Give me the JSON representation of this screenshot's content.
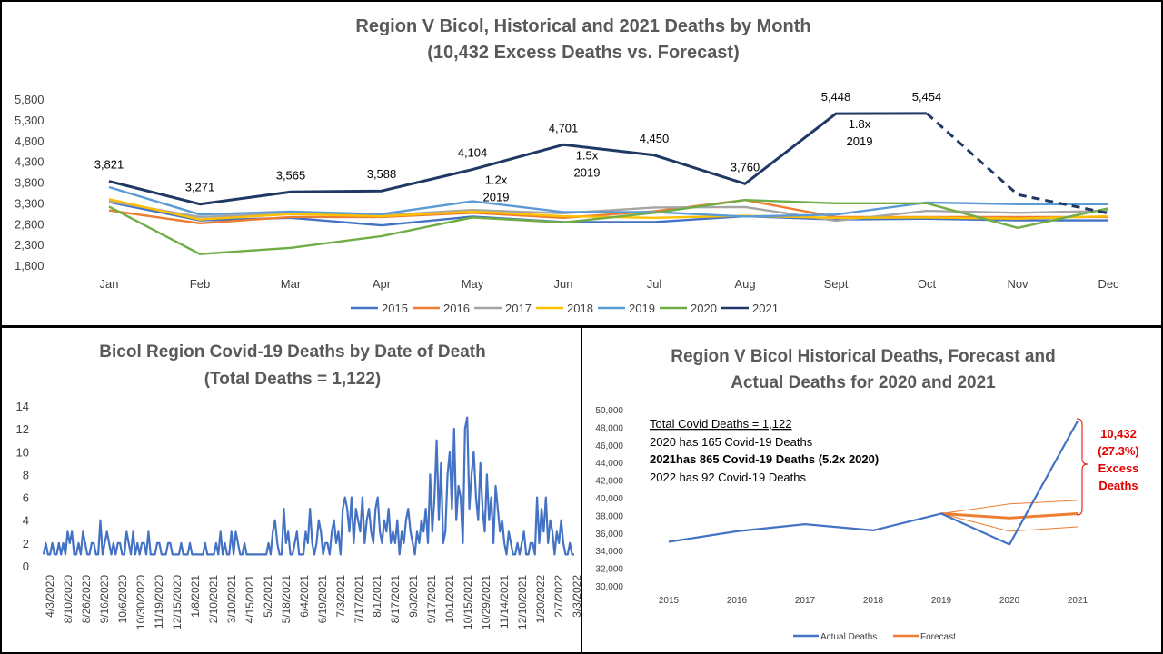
{
  "chart_data": [
    {
      "type": "line",
      "title": "Region V Bicol, Historical and 2021 Deaths by Month",
      "subtitle": "(10,432 Excess Deaths vs. Forecast)",
      "categories": [
        "Jan",
        "Feb",
        "Mar",
        "Apr",
        "May",
        "Jun",
        "Jul",
        "Aug",
        "Sept",
        "Oct",
        "Nov",
        "Dec"
      ],
      "y_ticks": [
        "1,800",
        "2,300",
        "2,800",
        "3,300",
        "3,800",
        "4,300",
        "4,800",
        "5,300",
        "5,800"
      ],
      "ylim": [
        1800,
        5800
      ],
      "grid": false,
      "legend_position": "bottom",
      "series": [
        {
          "name": "2015",
          "color": "#4472C4",
          "values": [
            3320,
            2880,
            2940,
            2760,
            2970,
            2840,
            2840,
            2980,
            2900,
            2920,
            2880,
            2880
          ]
        },
        {
          "name": "2016",
          "color": "#ED7D31",
          "values": [
            3120,
            2810,
            2960,
            2960,
            3060,
            2940,
            3100,
            3370,
            2960,
            2960,
            2960,
            2960
          ]
        },
        {
          "name": "2017",
          "color": "#A5A5A5",
          "values": [
            3340,
            2960,
            3050,
            3000,
            3130,
            3050,
            3190,
            3200,
            2870,
            3110,
            3060,
            3110
          ]
        },
        {
          "name": "2018",
          "color": "#FFC000",
          "values": [
            3390,
            2900,
            3030,
            2980,
            3090,
            2980,
            2940,
            2990,
            2940,
            2950,
            2920,
            2980
          ]
        },
        {
          "name": "2019",
          "color": "#5B9BD5",
          "values": [
            3680,
            3020,
            3090,
            3030,
            3340,
            3080,
            3080,
            2970,
            3020,
            3310,
            3270,
            3270
          ]
        },
        {
          "name": "2020",
          "color": "#70AD47",
          "values": [
            3210,
            2070,
            2220,
            2500,
            2950,
            2830,
            3060,
            3370,
            3290,
            3290,
            2700,
            3170
          ]
        },
        {
          "name": "2021",
          "color": "#203864",
          "values": [
            3821,
            3271,
            3565,
            3588,
            4104,
            4701,
            4450,
            3760,
            5448,
            5454,
            3500,
            3050
          ]
        }
      ],
      "data_labels": [
        "3,821",
        "3,271",
        "3,565",
        "3,588",
        "4,104",
        "4,701",
        "4,450",
        "3,760",
        "5,448",
        "5,454"
      ],
      "ratio_labels": [
        {
          "month": "May",
          "lines": [
            "1.2x",
            "2019"
          ]
        },
        {
          "month": "Jun",
          "lines": [
            "1.5x",
            "2019"
          ]
        },
        {
          "month": "Sept",
          "lines": [
            "1.8x",
            "2019"
          ]
        }
      ]
    },
    {
      "type": "line",
      "title": "Bicol Region Covid-19 Deaths by Date of Death",
      "subtitle": "(Total Deaths = 1,122)",
      "y_ticks": [
        "0",
        "2",
        "4",
        "6",
        "8",
        "10",
        "12",
        "14"
      ],
      "ylim": [
        0,
        14
      ],
      "grid": false,
      "color": "#4472C4",
      "x_tick_labels": [
        "4/3/2020",
        "8/10/2020",
        "8/26/2020",
        "9/16/2020",
        "10/6/2020",
        "10/30/2020",
        "11/19/2020",
        "12/15/2020",
        "1/8/2021",
        "2/10/2021",
        "3/10/2021",
        "4/15/2021",
        "5/2/2021",
        "5/18/2021",
        "6/4/2021",
        "6/19/2021",
        "7/3/2021",
        "7/17/2021",
        "8/1/2021",
        "8/17/2021",
        "9/3/2021",
        "9/17/2021",
        "10/1/2021",
        "10/15/2021",
        "10/29/2021",
        "11/14/2021",
        "12/10/2021",
        "1/20/2022",
        "2/7/2022",
        "3/3/2022"
      ],
      "values": [
        1,
        2,
        1,
        1,
        2,
        1,
        1,
        2,
        1,
        2,
        1,
        3,
        2,
        3,
        1,
        1,
        2,
        1,
        3,
        2,
        1,
        1,
        2,
        2,
        1,
        1,
        4,
        1,
        2,
        3,
        2,
        1,
        2,
        1,
        2,
        2,
        1,
        1,
        3,
        2,
        1,
        3,
        1,
        2,
        1,
        2,
        2,
        1,
        3,
        1,
        1,
        1,
        2,
        2,
        1,
        1,
        1,
        2,
        2,
        1,
        1,
        1,
        1,
        2,
        1,
        1,
        1,
        2,
        1,
        1,
        1,
        1,
        1,
        1,
        2,
        1,
        1,
        1,
        1,
        2,
        1,
        3,
        1,
        2,
        1,
        1,
        3,
        1,
        3,
        2,
        1,
        1,
        2,
        1,
        1,
        1,
        1,
        1,
        1,
        1,
        1,
        1,
        1,
        2,
        1,
        3,
        4,
        2,
        1,
        1,
        5,
        2,
        3,
        1,
        1,
        2,
        3,
        1,
        1,
        1,
        3,
        2,
        5,
        2,
        1,
        2,
        4,
        3,
        1,
        2,
        2,
        1,
        3,
        4,
        2,
        3,
        1,
        5,
        6,
        5,
        3,
        6,
        2,
        5,
        4,
        3,
        6,
        2,
        4,
        5,
        3,
        2,
        5,
        6,
        3,
        2,
        4,
        3,
        5,
        2,
        3,
        2,
        4,
        1,
        3,
        2,
        4,
        5,
        3,
        2,
        1,
        3,
        2,
        4,
        3,
        5,
        2,
        8,
        3,
        6,
        11,
        4,
        9,
        2,
        3,
        8,
        10,
        5,
        12,
        4,
        7,
        6,
        2,
        12,
        13,
        5,
        8,
        10,
        6,
        4,
        9,
        5,
        3,
        8,
        4,
        6,
        2,
        7,
        5,
        3,
        4,
        2,
        1,
        3,
        2,
        1,
        1,
        2,
        1,
        2,
        3,
        1,
        1,
        2,
        2,
        1,
        6,
        2,
        5,
        3,
        6,
        2,
        4,
        3,
        1,
        3,
        2,
        4,
        2,
        1,
        1,
        2,
        1,
        1
      ]
    },
    {
      "type": "line",
      "title": "Region V Bicol Historical Deaths, Forecast and",
      "subtitle": "Actual Deaths for 2020 and 2021",
      "categories": [
        "2015",
        "2016",
        "2017",
        "2018",
        "2019",
        "2020",
        "2021"
      ],
      "y_ticks": [
        "30,000",
        "32,000",
        "34,000",
        "36,000",
        "38,000",
        "40,000",
        "42,000",
        "44,000",
        "46,000",
        "48,000",
        "50,000"
      ],
      "ylim": [
        30000,
        50000
      ],
      "grid": false,
      "legend_position": "bottom",
      "series": [
        {
          "name": "Actual Deaths",
          "color": "#4472C4",
          "values": [
            35000,
            36200,
            37000,
            36300,
            38200,
            34700,
            48700
          ]
        },
        {
          "name": "Forecast",
          "color": "#ED7D31",
          "values": [
            null,
            null,
            null,
            null,
            38200,
            37700,
            38200
          ]
        }
      ],
      "forecast_bounds": {
        "upper": [
          null,
          null,
          null,
          null,
          38200,
          39300,
          39700
        ],
        "lower": [
          null,
          null,
          null,
          null,
          38200,
          36200,
          36700
        ]
      },
      "text_box": {
        "line1": "Total Covid Deaths = 1,122",
        "line2": "2020 has 165 Covid-19 Deaths",
        "line3": "2021has 865 Covid-19 Deaths (5.2x 2020)",
        "line4": "2022 has 92 Covid-19 Deaths"
      },
      "excess_label": {
        "value": "10,432",
        "pct": "(27.3%)",
        "word1": "Excess",
        "word2": "Deaths",
        "color": "#E00000"
      }
    }
  ]
}
